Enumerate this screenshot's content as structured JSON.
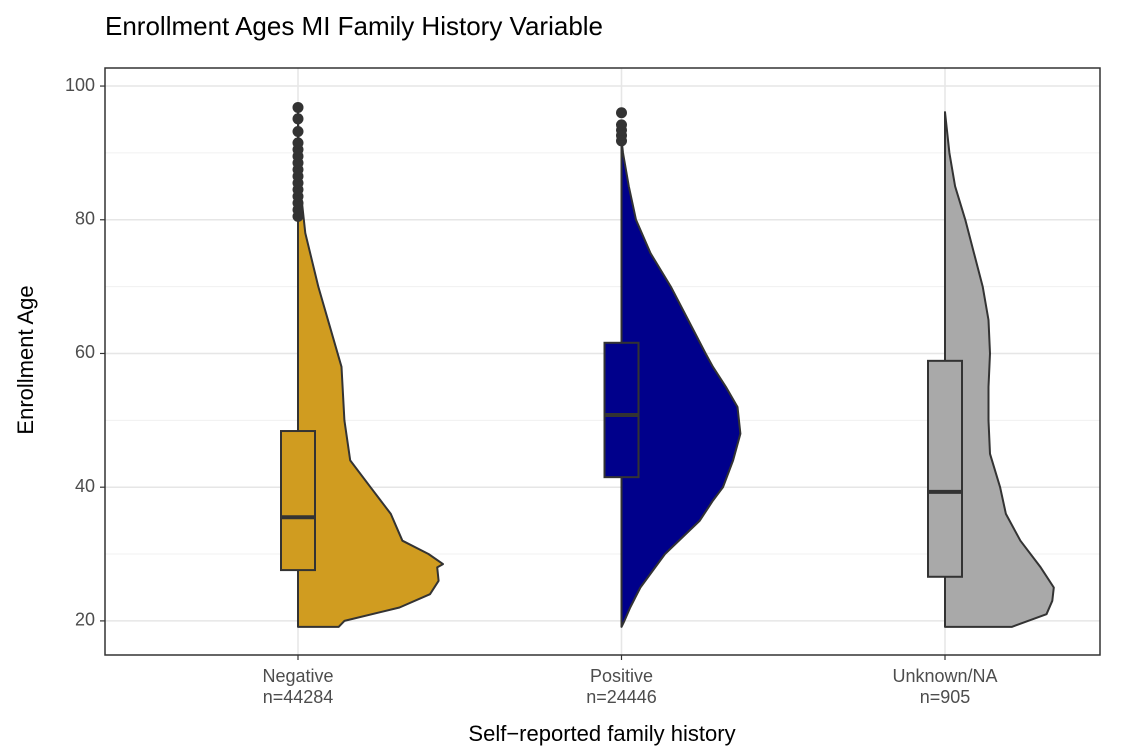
{
  "chart_data": {
    "type": "violin",
    "title": "Enrollment Ages MI Family History Variable",
    "x_label": "Self−reported family history",
    "y_label": "Enrollment Age",
    "ylim": [
      14.9,
      102.7
    ],
    "yticks": [
      20,
      40,
      60,
      80,
      100
    ],
    "grid": true,
    "groups": [
      {
        "name": "Negative",
        "n_label": "n=44284",
        "color": "#D09C20",
        "box": {
          "whisker_low": 19.1,
          "q1": 27.6,
          "median": 35.5,
          "q3": 48.4,
          "whisker_high": 80.1
        },
        "outliers": [
          80.5,
          81.5,
          82.5,
          83.5,
          84.5,
          85.5,
          86.5,
          87.5,
          88.5,
          89.5,
          90.5,
          91.5,
          93.2,
          95.1,
          96.8
        ],
        "density": {
          "y": [
            19.1,
            20,
            22,
            24,
            26,
            28,
            28.5,
            30,
            32,
            34,
            36,
            40,
            44,
            50,
            58,
            64,
            70,
            78,
            85,
            90,
            96.8
          ],
          "width": [
            0.28,
            0.32,
            0.7,
            0.91,
            0.97,
            0.96,
            1.0,
            0.9,
            0.72,
            0.68,
            0.64,
            0.5,
            0.36,
            0.32,
            0.3,
            0.22,
            0.14,
            0.05,
            0.015,
            0.005,
            0
          ]
        }
      },
      {
        "name": "Positive",
        "n_label": "n=24446",
        "color": "#00008B",
        "box": {
          "whisker_low": 19.1,
          "q1": 41.5,
          "median": 50.8,
          "q3": 61.6,
          "whisker_high": 91.2
        },
        "outliers": [
          91.8,
          92.6,
          93.4,
          94.2,
          96.0
        ],
        "density": {
          "y": [
            19.1,
            20,
            22,
            25,
            30,
            35,
            38,
            40,
            44,
            48,
            52,
            55,
            58,
            60,
            65,
            70,
            75,
            80,
            85,
            90,
            92
          ],
          "width": [
            0,
            0.02,
            0.06,
            0.13,
            0.3,
            0.54,
            0.63,
            0.7,
            0.77,
            0.82,
            0.8,
            0.72,
            0.63,
            0.58,
            0.46,
            0.34,
            0.2,
            0.1,
            0.05,
            0.01,
            0
          ]
        }
      },
      {
        "name": "Unknown/NA",
        "n_label": "n=905",
        "color": "#A9A9A9",
        "box": {
          "whisker_low": 19.1,
          "q1": 26.6,
          "median": 39.3,
          "q3": 58.9,
          "whisker_high": 96.1
        },
        "outliers": [],
        "density": {
          "y": [
            19.1,
            21,
            23,
            25,
            28,
            32,
            36,
            40,
            45,
            50,
            55,
            60,
            65,
            70,
            75,
            80,
            85,
            90,
            96.1
          ],
          "width": [
            0.46,
            0.7,
            0.74,
            0.75,
            0.66,
            0.52,
            0.42,
            0.38,
            0.31,
            0.3,
            0.3,
            0.31,
            0.3,
            0.26,
            0.2,
            0.14,
            0.07,
            0.03,
            0
          ]
        }
      }
    ]
  }
}
